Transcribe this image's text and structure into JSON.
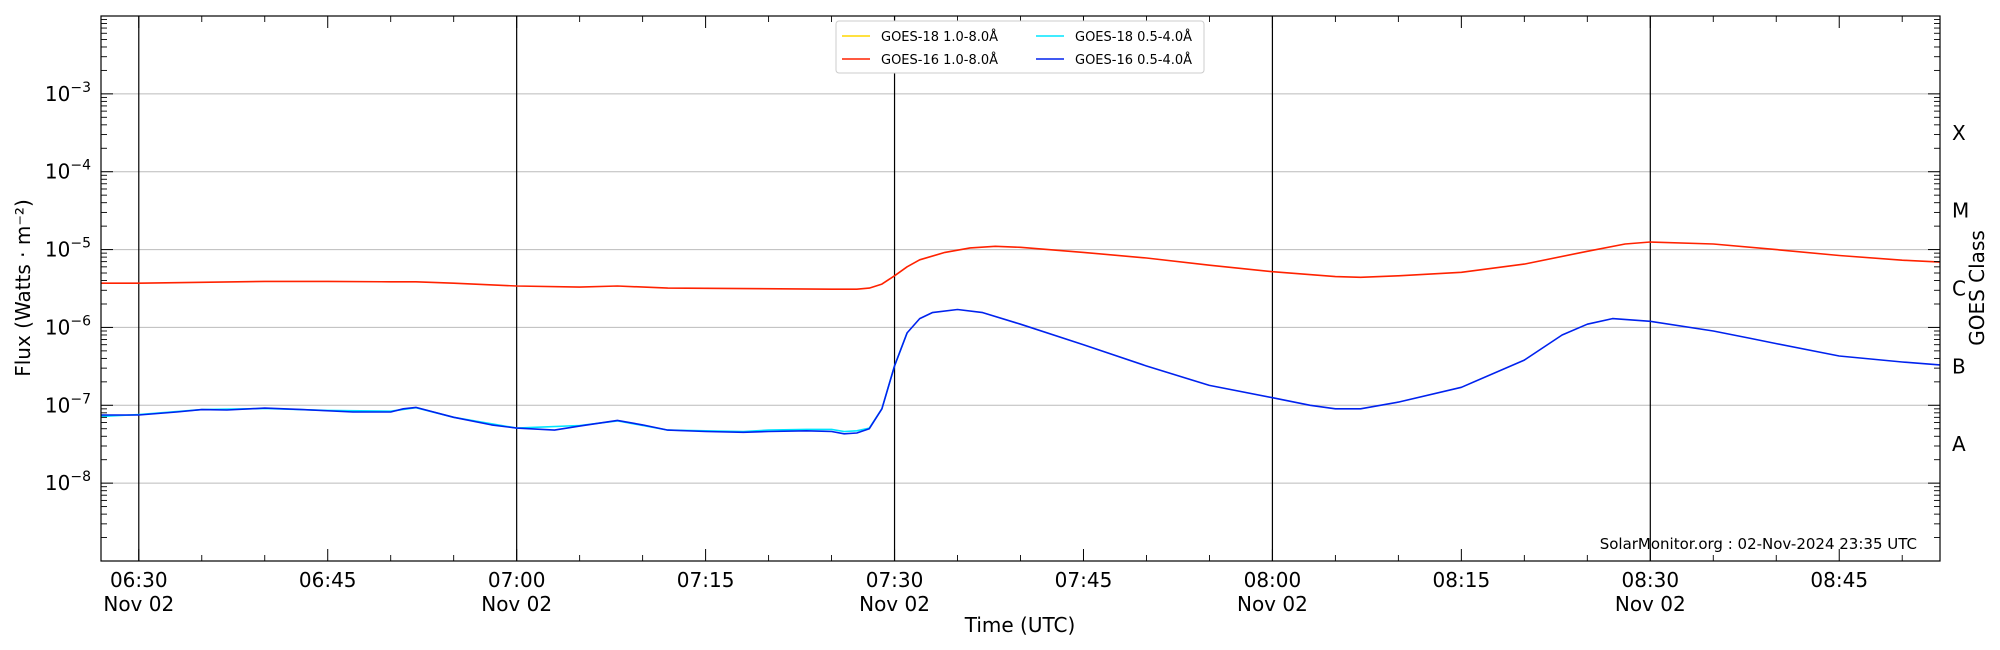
{
  "chart_data": {
    "type": "line",
    "xlabel": "Time (UTC)",
    "ylabel": "Flux (Watts · m⁻²)",
    "right_ylabel": "GOES Class",
    "y_scale": "log",
    "ylim": [
      1e-09,
      0.01
    ],
    "xlim": [
      "2024-11-02 06:27",
      "2024-11-02 08:53"
    ],
    "credit": "SolarMonitor.org : 02-Nov-2024 23:35 UTC",
    "grid": "horizontal at decades",
    "legend_position": "top-center",
    "x_ticks": [
      {
        "time": "06:30",
        "line1": "06:30",
        "line2": "Nov 02"
      },
      {
        "time": "06:45",
        "line1": "06:45",
        "line2": ""
      },
      {
        "time": "07:00",
        "line1": "07:00",
        "line2": "Nov 02"
      },
      {
        "time": "07:15",
        "line1": "07:15",
        "line2": ""
      },
      {
        "time": "07:30",
        "line1": "07:30",
        "line2": "Nov 02"
      },
      {
        "time": "07:45",
        "line1": "07:45",
        "line2": ""
      },
      {
        "time": "08:00",
        "line1": "08:00",
        "line2": "Nov 02"
      },
      {
        "time": "08:15",
        "line1": "08:15",
        "line2": ""
      },
      {
        "time": "08:30",
        "line1": "08:30",
        "line2": "Nov 02"
      },
      {
        "time": "08:45",
        "line1": "08:45",
        "line2": ""
      }
    ],
    "vertical_lines": [
      "06:30",
      "07:00",
      "07:30",
      "08:00",
      "08:30"
    ],
    "y_ticks": [
      {
        "value": 1e-08,
        "label": "10",
        "exp": "−8"
      },
      {
        "value": 1e-07,
        "label": "10",
        "exp": "−7"
      },
      {
        "value": 1e-06,
        "label": "10",
        "exp": "−6"
      },
      {
        "value": 1e-05,
        "label": "10",
        "exp": "−5"
      },
      {
        "value": 0.0001,
        "label": "10",
        "exp": "−4"
      },
      {
        "value": 0.001,
        "label": "10",
        "exp": "−3"
      }
    ],
    "goes_classes": [
      {
        "label": "A",
        "value": 3.16e-08
      },
      {
        "label": "B",
        "value": 3.16e-07
      },
      {
        "label": "C",
        "value": 3.16e-06
      },
      {
        "label": "M",
        "value": 3.16e-05
      },
      {
        "label": "X",
        "value": 0.000316
      }
    ],
    "legend": [
      {
        "name": "GOES-18 1.0-8.0Å",
        "color": "#ffd700"
      },
      {
        "name": "GOES-18 0.5-4.0Å",
        "color": "#00e5ff"
      },
      {
        "name": "GOES-16 1.0-8.0Å",
        "color": "#ff2200"
      },
      {
        "name": "GOES-16 0.5-4.0Å",
        "color": "#0022ee"
      }
    ],
    "series": [
      {
        "name": "GOES-16 1.0-8.0Å",
        "color": "#ff2200",
        "x": [
          "06:27",
          "06:30",
          "06:35",
          "06:40",
          "06:45",
          "06:50",
          "06:52",
          "06:55",
          "07:00",
          "07:05",
          "07:08",
          "07:12",
          "07:18",
          "07:25",
          "07:27",
          "07:28",
          "07:29",
          "07:30",
          "07:31",
          "07:32",
          "07:34",
          "07:36",
          "07:38",
          "07:40",
          "07:45",
          "07:50",
          "07:55",
          "08:00",
          "08:05",
          "08:07",
          "08:10",
          "08:15",
          "08:20",
          "08:25",
          "08:28",
          "08:30",
          "08:35",
          "08:40",
          "08:45",
          "08:50",
          "08:53"
        ],
        "y": [
          3.7e-06,
          3.7e-06,
          3.8e-06,
          3.9e-06,
          3.9e-06,
          3.85e-06,
          3.85e-06,
          3.7e-06,
          3.4e-06,
          3.3e-06,
          3.4e-06,
          3.2e-06,
          3.15e-06,
          3.1e-06,
          3.1e-06,
          3.2e-06,
          3.6e-06,
          4.6e-06,
          6e-06,
          7.4e-06,
          9.2e-06,
          1.05e-05,
          1.1e-05,
          1.07e-05,
          9.2e-06,
          7.8e-06,
          6.3e-06,
          5.2e-06,
          4.5e-06,
          4.4e-06,
          4.6e-06,
          5.1e-06,
          6.5e-06,
          9.5e-06,
          1.18e-05,
          1.25e-05,
          1.18e-05,
          1e-05,
          8.4e-06,
          7.3e-06,
          6.9e-06
        ]
      },
      {
        "name": "GOES-16 0.5-4.0Å",
        "color": "#0022ee",
        "x": [
          "06:27",
          "06:30",
          "06:33",
          "06:35",
          "06:37",
          "06:40",
          "06:43",
          "06:47",
          "06:50",
          "06:51",
          "06:52",
          "06:55",
          "06:58",
          "07:00",
          "07:03",
          "07:05",
          "07:08",
          "07:10",
          "07:12",
          "07:15",
          "07:18",
          "07:20",
          "07:23",
          "07:25",
          "07:26",
          "07:27",
          "07:28",
          "07:29",
          "07:30",
          "07:31",
          "07:32",
          "07:33",
          "07:35",
          "07:37",
          "07:40",
          "07:45",
          "07:50",
          "07:55",
          "08:00",
          "08:03",
          "08:05",
          "08:07",
          "08:10",
          "08:15",
          "08:20",
          "08:23",
          "08:25",
          "08:27",
          "08:30",
          "08:35",
          "08:38",
          "08:40",
          "08:45",
          "08:50",
          "08:53"
        ],
        "y": [
          7.5e-08,
          7.5e-08,
          8.2e-08,
          8.8e-08,
          8.7e-08,
          9.2e-08,
          8.8e-08,
          8.2e-08,
          8.2e-08,
          9e-08,
          9.4e-08,
          7e-08,
          5.6e-08,
          5.1e-08,
          4.8e-08,
          5.4e-08,
          6.4e-08,
          5.6e-08,
          4.8e-08,
          4.6e-08,
          4.5e-08,
          4.6e-08,
          4.7e-08,
          4.6e-08,
          4.3e-08,
          4.4e-08,
          5e-08,
          9e-08,
          3.2e-07,
          8.5e-07,
          1.3e-06,
          1.55e-06,
          1.7e-06,
          1.55e-06,
          1.1e-06,
          6e-07,
          3.2e-07,
          1.8e-07,
          1.25e-07,
          1e-07,
          9e-08,
          9e-08,
          1.1e-07,
          1.7e-07,
          3.8e-07,
          8e-07,
          1.1e-06,
          1.3e-06,
          1.2e-06,
          9e-07,
          7.2e-07,
          6.2e-07,
          4.3e-07,
          3.6e-07,
          3.3e-07
        ]
      },
      {
        "name": "GOES-18 0.5-4.0Å",
        "color": "#00e5ff",
        "x": [
          "06:27",
          "06:30",
          "06:35",
          "06:40",
          "06:45",
          "06:50",
          "06:52",
          "06:55",
          "07:00",
          "07:05",
          "07:08",
          "07:12",
          "07:15",
          "07:18",
          "07:20",
          "07:23",
          "07:25",
          "07:26",
          "07:27",
          "07:28",
          "07:29",
          "07:30",
          "07:31"
        ],
        "y": [
          7.2e-08,
          7.6e-08,
          8.8e-08,
          9.1e-08,
          8.6e-08,
          8.4e-08,
          9.3e-08,
          7e-08,
          5.1e-08,
          5.5e-08,
          6.3e-08,
          4.8e-08,
          4.7e-08,
          4.6e-08,
          4.8e-08,
          4.9e-08,
          4.9e-08,
          4.6e-08,
          4.7e-08,
          5.1e-08,
          9e-08,
          3.2e-07,
          8.5e-07
        ]
      }
    ]
  }
}
